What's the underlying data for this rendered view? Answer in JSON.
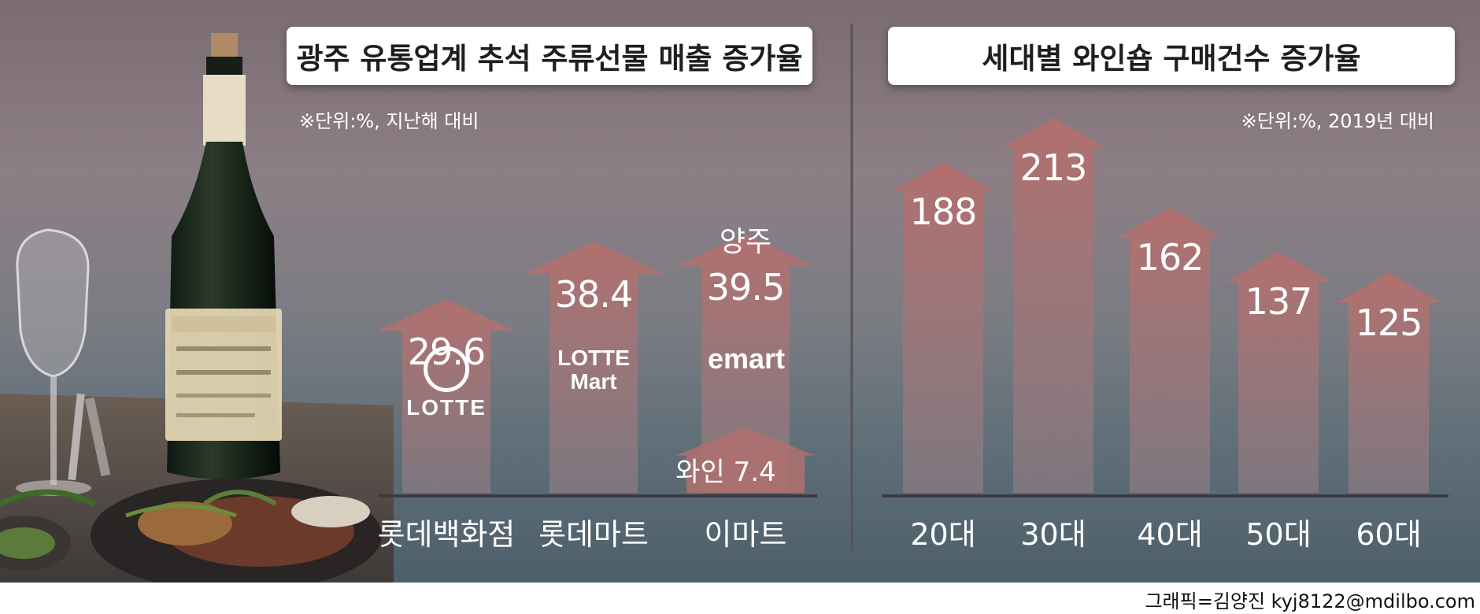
{
  "credit": "그래픽=김양진 kyj8122@mdilbo.com",
  "colors": {
    "arrow_top": "#b2706f",
    "arrow_bottom": "#8b7a80",
    "title_bg": "#ffffff"
  },
  "chart_data": [
    {
      "type": "bar",
      "title": "광주 유통업계 추석 주류선물 매출  증가율",
      "unit_note": "※단위:%, 지난해 대비",
      "categories": [
        "롯데백화점",
        "롯데마트",
        "이마트"
      ],
      "series": [
        {
          "name": "양주",
          "values": [
            29.6,
            38.4,
            39.5
          ]
        },
        {
          "name": "와인",
          "values": [
            null,
            null,
            7.4
          ]
        }
      ],
      "value_labels": [
        "29.6",
        "38.4",
        "39.5"
      ],
      "sub_labels": {
        "liquor": "양주",
        "wine": "와인 7.4"
      },
      "logos": [
        "LOTTE",
        "LOTTE Mart",
        "emart"
      ],
      "marks": "upward arrows"
    },
    {
      "type": "bar",
      "title": "세대별 와인숍 구매건수 증가율",
      "unit_note": "※단위:%, 2019년 대비",
      "categories": [
        "20대",
        "30대",
        "40대",
        "50대",
        "60대"
      ],
      "values": [
        188,
        213,
        162,
        137,
        125
      ],
      "value_labels": [
        "188",
        "213",
        "162",
        "137",
        "125"
      ],
      "marks": "upward arrows"
    }
  ]
}
